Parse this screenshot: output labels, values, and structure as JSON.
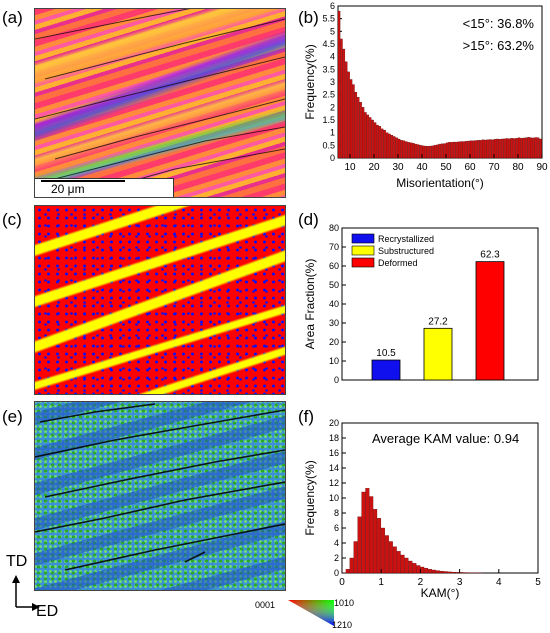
{
  "panels": {
    "a": "(a)",
    "b": "(b)",
    "c": "(c)",
    "d": "(d)",
    "e": "(e)",
    "f": "(f)"
  },
  "scalebar": {
    "label": "20 μm"
  },
  "axes_dirs": {
    "vertical": "TD",
    "horizontal": "ED"
  },
  "ipf_key": {
    "c0001": "0001",
    "c1010": "1010",
    "c1210": "1210"
  },
  "colors": {
    "bar": "#cc1111",
    "recrystallized": "#1010ee",
    "substructured": "#ffff00",
    "deformed": "#ff0000",
    "kam_low": "#1e50c8",
    "kam_mid": "#3cc83c"
  },
  "chart_data": [
    {
      "id": "b",
      "type": "bar",
      "xlabel": "Misorientation(°)",
      "ylabel": "Frequency(%)",
      "xlim": [
        5,
        90
      ],
      "ylim": [
        0,
        6
      ],
      "xticks": [
        10,
        20,
        30,
        40,
        50,
        60,
        70,
        80,
        90
      ],
      "yticks": [
        0,
        0.5,
        1,
        1.5,
        2,
        2.5,
        3,
        3.5,
        4,
        4.5,
        5,
        5.5,
        6
      ],
      "annotations": [
        "<15°: 36.8%",
        ">15°: 63.2%"
      ],
      "bin_width": 1,
      "x": [
        5,
        6,
        7,
        8,
        9,
        10,
        11,
        12,
        13,
        14,
        15,
        16,
        17,
        18,
        19,
        20,
        21,
        22,
        23,
        24,
        25,
        26,
        27,
        28,
        29,
        30,
        31,
        32,
        33,
        34,
        35,
        36,
        37,
        38,
        39,
        40,
        41,
        42,
        43,
        44,
        45,
        46,
        47,
        48,
        49,
        50,
        51,
        52,
        53,
        54,
        55,
        56,
        57,
        58,
        59,
        60,
        61,
        62,
        63,
        64,
        65,
        66,
        67,
        68,
        69,
        70,
        71,
        72,
        73,
        74,
        75,
        76,
        77,
        78,
        79,
        80,
        81,
        82,
        83,
        84,
        85,
        86,
        87,
        88,
        89
      ],
      "values": [
        5.8,
        4.7,
        4.3,
        3.8,
        3.4,
        3.1,
        2.9,
        2.6,
        2.4,
        2.2,
        2.0,
        1.8,
        1.7,
        1.6,
        1.5,
        1.4,
        1.3,
        1.25,
        1.15,
        1.1,
        1.0,
        0.95,
        0.9,
        0.85,
        0.8,
        0.75,
        0.7,
        0.68,
        0.65,
        0.62,
        0.6,
        0.58,
        0.55,
        0.53,
        0.5,
        0.48,
        0.47,
        0.46,
        0.47,
        0.48,
        0.5,
        0.52,
        0.55,
        0.56,
        0.57,
        0.6,
        0.62,
        0.62,
        0.63,
        0.63,
        0.64,
        0.65,
        0.65,
        0.66,
        0.67,
        0.68,
        0.68,
        0.69,
        0.7,
        0.7,
        0.72,
        0.71,
        0.72,
        0.73,
        0.72,
        0.74,
        0.75,
        0.74,
        0.75,
        0.76,
        0.77,
        0.76,
        0.78,
        0.77,
        0.78,
        0.8,
        0.78,
        0.79,
        0.8,
        0.82,
        0.8,
        0.79,
        0.81,
        0.8,
        0.75
      ]
    },
    {
      "id": "d",
      "type": "bar",
      "xlabel": "",
      "ylabel": "Area Fraction(%)",
      "ylim": [
        0,
        80
      ],
      "yticks": [
        0,
        10,
        20,
        30,
        40,
        50,
        60,
        70,
        80
      ],
      "series": [
        {
          "name": "Recrystallized",
          "value": 10.5,
          "label": "10.5"
        },
        {
          "name": "Substructured",
          "value": 27.2,
          "label": "27.2"
        },
        {
          "name": "Deformed",
          "value": 62.3,
          "label": "62.3"
        }
      ]
    },
    {
      "id": "f",
      "type": "bar",
      "xlabel": "KAM(°)",
      "ylabel": "Frequency(%)",
      "xlim": [
        0,
        5
      ],
      "ylim": [
        0,
        20
      ],
      "xticks": [
        0,
        1,
        2,
        3,
        4,
        5
      ],
      "yticks": [
        0,
        2,
        4,
        6,
        8,
        10,
        12,
        14,
        16,
        18,
        20
      ],
      "annotation": "Average KAM value: 0.94",
      "bin_width": 0.1,
      "x": [
        0.05,
        0.15,
        0.25,
        0.35,
        0.45,
        0.55,
        0.65,
        0.75,
        0.85,
        0.95,
        1.05,
        1.15,
        1.25,
        1.35,
        1.45,
        1.55,
        1.65,
        1.75,
        1.85,
        1.95,
        2.05,
        2.15,
        2.25,
        2.35,
        2.45,
        2.55,
        2.65,
        2.75,
        2.85,
        2.95,
        3.05,
        3.15,
        3.25,
        3.35,
        3.45,
        3.55
      ],
      "values": [
        0.05,
        0.5,
        2.0,
        4.2,
        7.5,
        10.8,
        11.3,
        10.2,
        8.5,
        7.3,
        6.0,
        5.0,
        4.2,
        3.5,
        2.9,
        2.4,
        2.0,
        1.6,
        1.3,
        1.0,
        0.8,
        0.65,
        0.5,
        0.4,
        0.32,
        0.25,
        0.2,
        0.15,
        0.12,
        0.1,
        0.08,
        0.06,
        0.05,
        0.04,
        0.03,
        0.02
      ]
    }
  ]
}
